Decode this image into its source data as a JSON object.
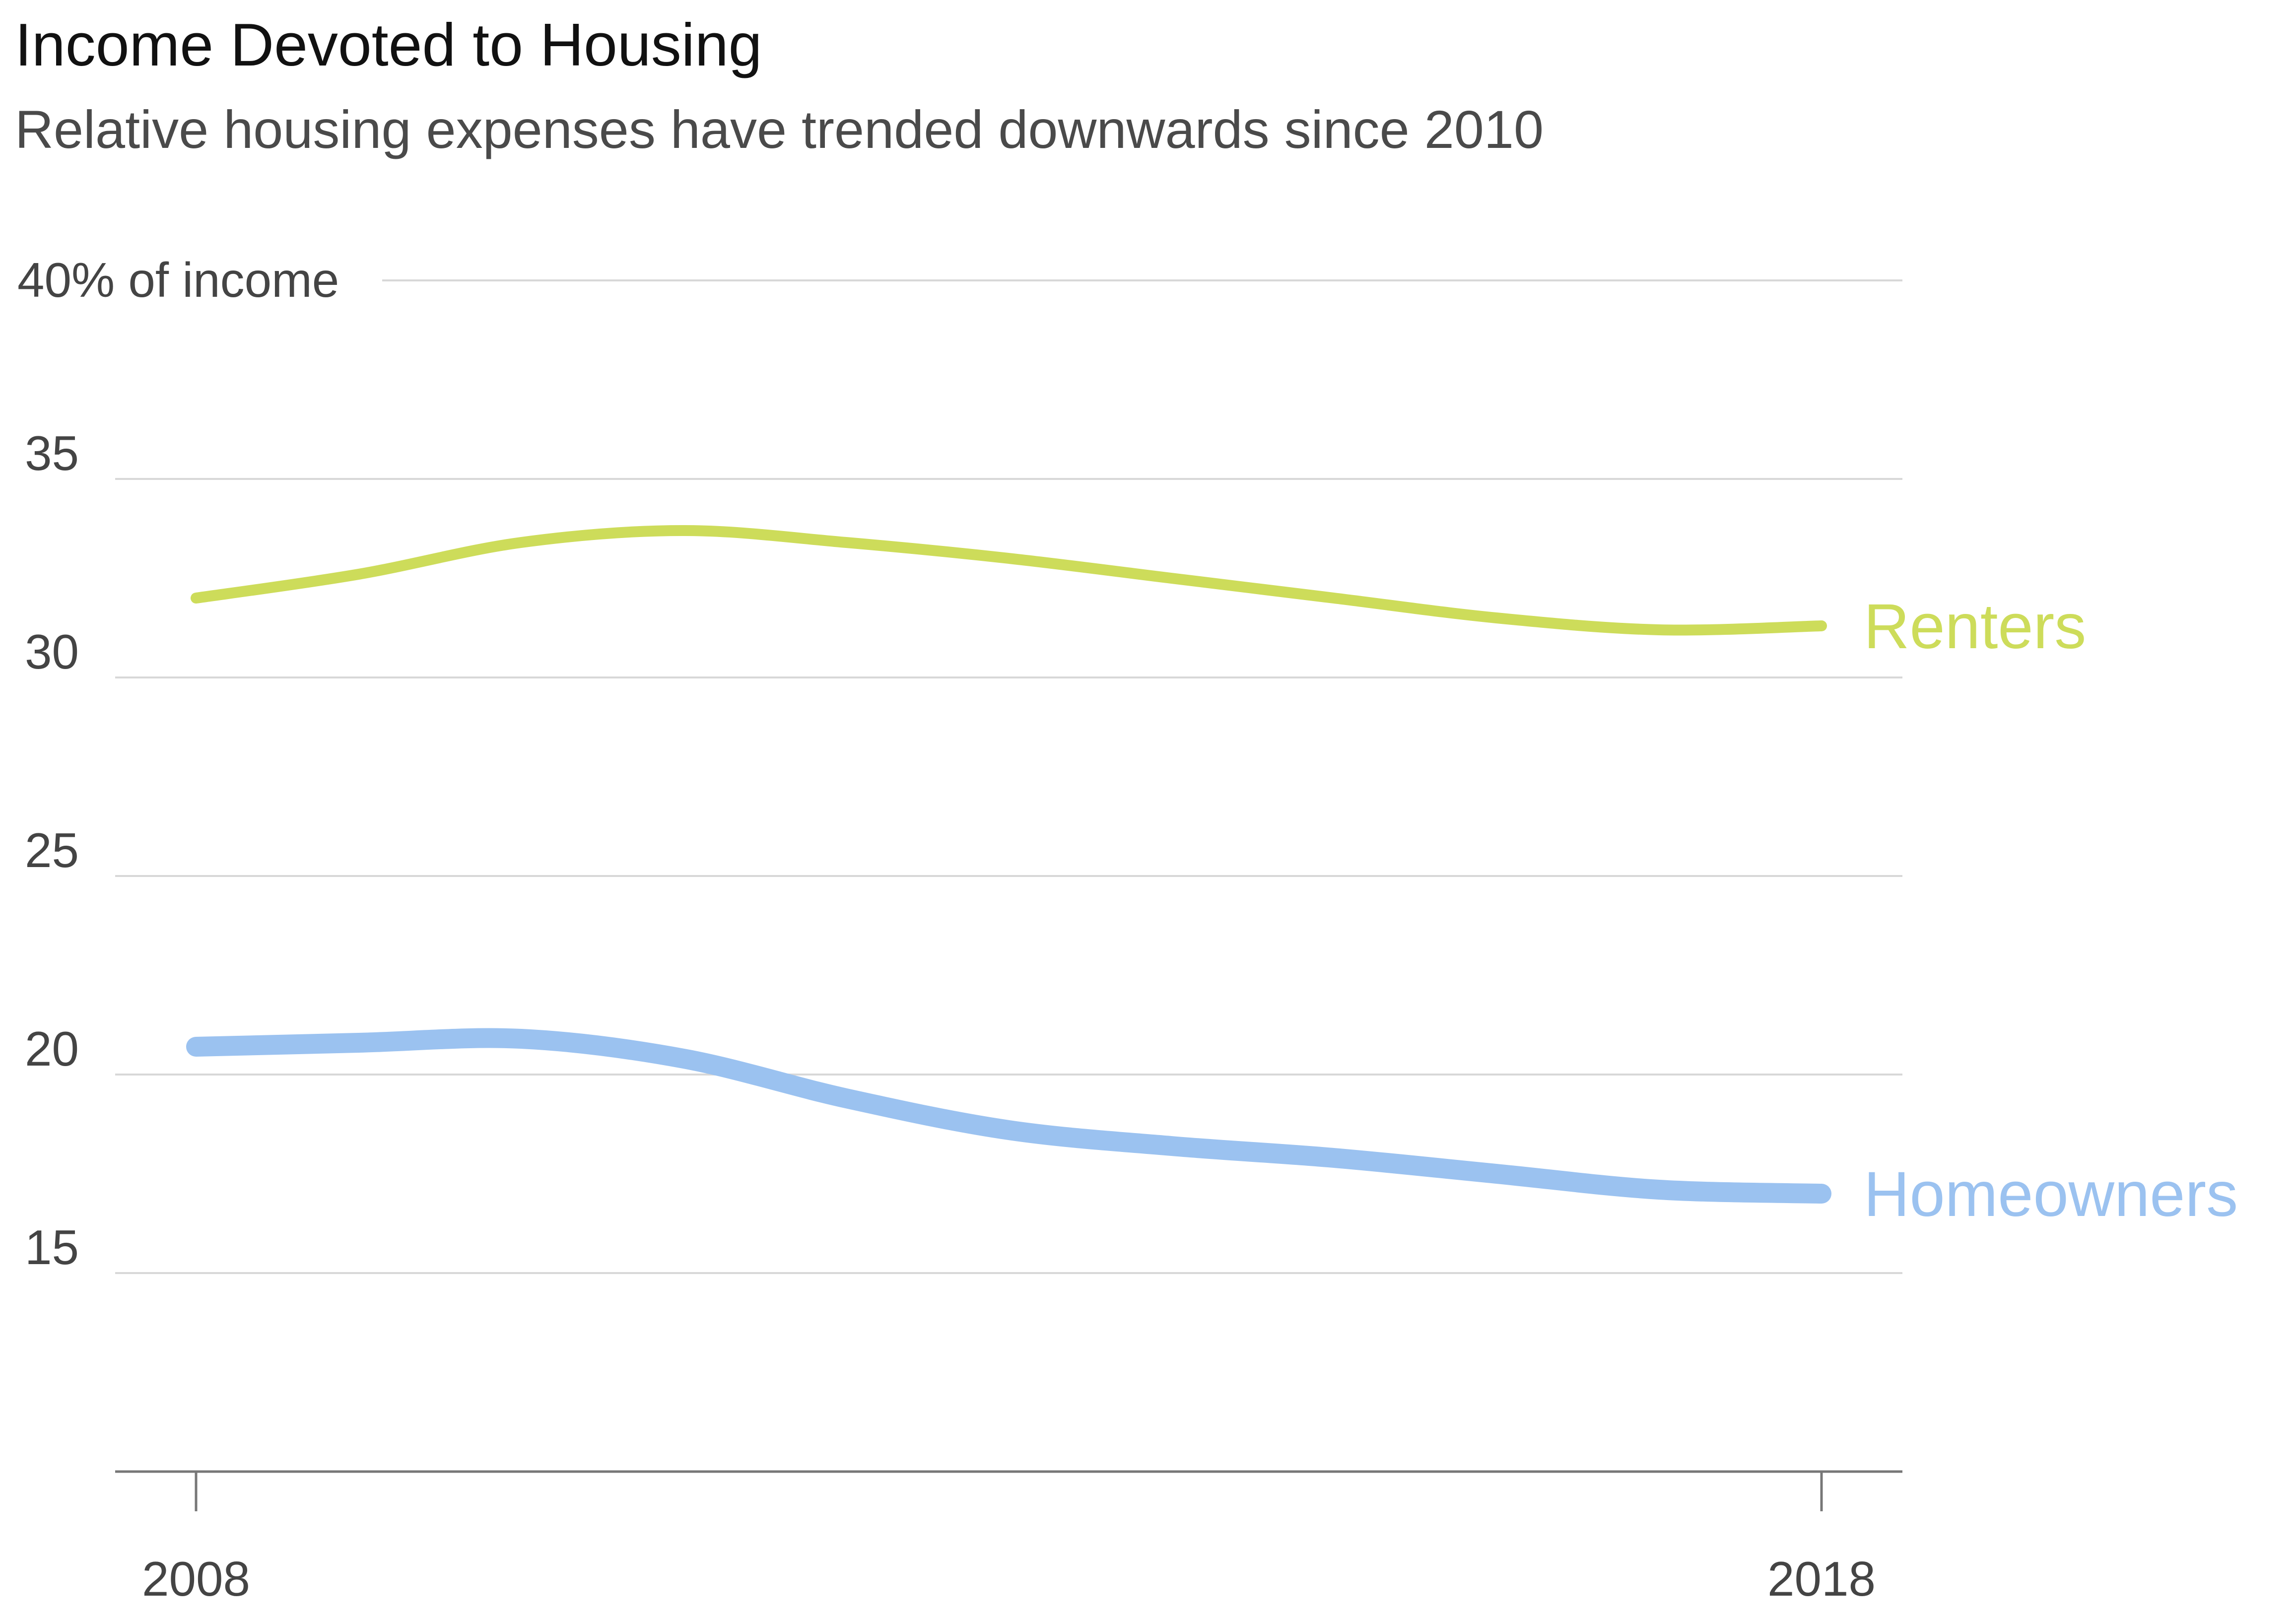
{
  "chart_data": {
    "type": "line",
    "title": "Income Devoted to Housing",
    "subtitle": "Relative housing expenses have trended downwards since 2010",
    "xlabel": "",
    "ylabel": "",
    "y_top_label": "40% of income",
    "x": [
      2008,
      2009,
      2010,
      2011,
      2012,
      2013,
      2014,
      2015,
      2016,
      2017,
      2018
    ],
    "x_ticks": [
      "2008",
      "2018"
    ],
    "xlim": [
      2007.5,
      2018.5
    ],
    "ylim": [
      10,
      40
    ],
    "y_ticks": [
      "15",
      "20",
      "25",
      "30",
      "35"
    ],
    "grid": true,
    "series": [
      {
        "name": "Renters",
        "color": "#cddc5a",
        "values": [
          32.0,
          32.6,
          33.4,
          33.7,
          33.4,
          33.0,
          32.5,
          32.0,
          31.5,
          31.2,
          31.3
        ]
      },
      {
        "name": "Homeowners",
        "color": "#9bc2f0",
        "values": [
          20.7,
          20.8,
          20.9,
          20.4,
          19.4,
          18.6,
          18.2,
          17.9,
          17.5,
          17.1,
          17.0
        ]
      }
    ]
  }
}
